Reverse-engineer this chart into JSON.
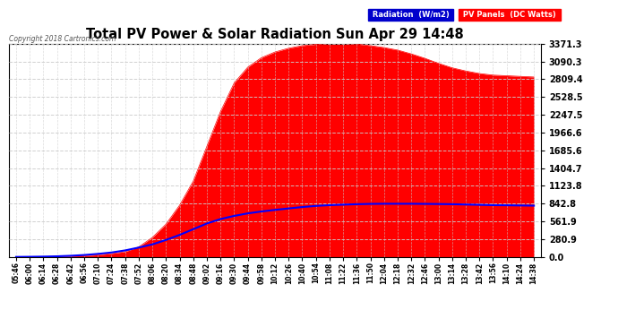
{
  "title": "Total PV Power & Solar Radiation Sun Apr 29 14:48",
  "copyright": "Copyright 2018 Cartronics.com",
  "ylabel_right_ticks": [
    0.0,
    280.9,
    561.9,
    842.8,
    1123.8,
    1404.7,
    1685.6,
    1966.6,
    2247.5,
    2528.5,
    2809.4,
    3090.3,
    3371.3
  ],
  "pv_color": "#FF0000",
  "radiation_color": "#0000FF",
  "bg_color": "#FFFFFF",
  "grid_color": "#CCCCCC",
  "title_color": "#000000",
  "legend_radiation_bg": "#0000CC",
  "legend_pv_bg": "#FF0000",
  "time_labels": [
    "05:46",
    "06:00",
    "06:14",
    "06:28",
    "06:42",
    "06:56",
    "07:10",
    "07:24",
    "07:38",
    "07:52",
    "08:06",
    "08:20",
    "08:34",
    "08:48",
    "09:02",
    "09:16",
    "09:30",
    "09:44",
    "09:58",
    "10:12",
    "10:26",
    "10:40",
    "10:54",
    "11:08",
    "11:22",
    "11:36",
    "11:50",
    "12:04",
    "12:18",
    "12:32",
    "12:46",
    "13:00",
    "13:14",
    "13:28",
    "13:42",
    "13:56",
    "14:10",
    "14:24",
    "14:38"
  ],
  "pv_data": [
    2,
    4,
    6,
    10,
    16,
    22,
    35,
    55,
    85,
    160,
    310,
    520,
    820,
    1200,
    1750,
    2300,
    2750,
    3000,
    3150,
    3240,
    3300,
    3340,
    3360,
    3371,
    3371,
    3365,
    3340,
    3310,
    3270,
    3210,
    3140,
    3060,
    2990,
    2940,
    2900,
    2875,
    2865,
    2855,
    2845
  ],
  "radiation_data": [
    2,
    4,
    7,
    12,
    20,
    32,
    50,
    72,
    105,
    150,
    200,
    270,
    350,
    440,
    530,
    600,
    650,
    690,
    720,
    745,
    768,
    790,
    808,
    820,
    828,
    835,
    840,
    842,
    842,
    842,
    840,
    838,
    835,
    830,
    825,
    820,
    818,
    815,
    812
  ],
  "ymax": 3371.3,
  "ymin": 0.0,
  "figsize": [
    6.9,
    3.75
  ],
  "dpi": 100
}
